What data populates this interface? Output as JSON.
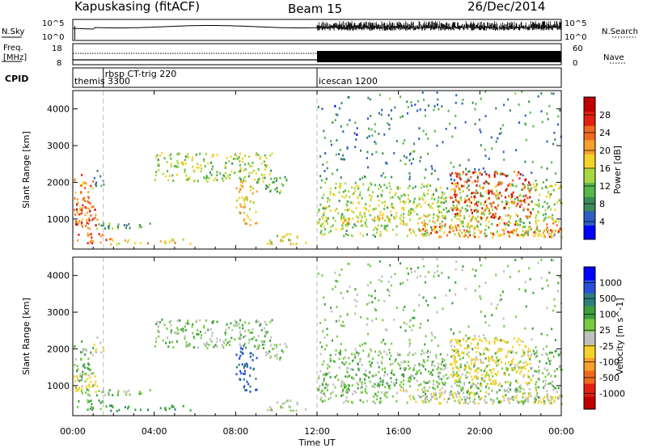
{
  "header": {
    "station": "Kapuskasing (fitACF)",
    "beam": "Beam 15",
    "date": "26/Dec/2014"
  },
  "noise_panel": {
    "left_label": "N.Sky",
    "left_ticks": [
      "10^5",
      "10^0"
    ],
    "right_label": "N.Search",
    "right_ticks": [
      "10^5",
      "10^0"
    ]
  },
  "freq_panel": {
    "left_label_1": "Freq.",
    "left_label_2": "[MHz]",
    "left_ticks": [
      "18",
      "8"
    ],
    "right_label": "Nave",
    "right_ticks": [
      "60",
      "0"
    ]
  },
  "cpid_panel": {
    "label": "CPID",
    "modes": [
      {
        "name": "themis 3300",
        "start_hour": 0
      },
      {
        "name": "rbsp CT-trig 220",
        "start_hour": 1.5
      },
      {
        "name": "icescan 1200",
        "start_hour": 12
      }
    ]
  },
  "x_axis": {
    "label": "Time UT",
    "ticks": [
      "00:00",
      "04:00",
      "08:00",
      "12:00",
      "16:00",
      "20:00",
      "00:00"
    ]
  },
  "power_panel": {
    "ylabel": "Slant Range [km]",
    "yticks": [
      "1000",
      "2000",
      "3000",
      "4000"
    ],
    "colorbar_label": "Power [dB]",
    "colorbar_ticks": [
      "4",
      "8",
      "12",
      "16",
      "20",
      "24",
      "28"
    ],
    "colors": [
      "#0000ff",
      "#2e5fc4",
      "#3a8a5a",
      "#55b84a",
      "#a8d840",
      "#f5d22a",
      "#f7a02a",
      "#f06a1e",
      "#e02010",
      "#c00000"
    ]
  },
  "velocity_panel": {
    "ylabel": "Slant Range [km]",
    "yticks": [
      "1000",
      "2000",
      "3000",
      "4000"
    ],
    "colorbar_label": "Velocity [m s^-1]",
    "colorbar_ticks": [
      "1000",
      "500",
      "100",
      "25",
      "-25",
      "-100",
      "-500",
      "-1000"
    ],
    "colors": [
      "#0000ff",
      "#2a4fd8",
      "#2e7f7f",
      "#3ca03c",
      "#77cc44",
      "#bfbfbf",
      "#f5d22a",
      "#f7a02a",
      "#f06a1e",
      "#e02010",
      "#c00000"
    ]
  },
  "chart_data": {
    "type": "heatmap",
    "x_unit": "hour UT",
    "x_range": [
      0,
      24
    ],
    "y_range_km": [
      180,
      4500
    ],
    "regions": [
      {
        "t0": 0.0,
        "t1": 1.0,
        "r0": 700,
        "r1": 2200,
        "power": 22,
        "velocity": 0
      },
      {
        "t0": 0.0,
        "t1": 1.2,
        "r0": 800,
        "r1": 1300,
        "power": 26,
        "velocity": -300
      },
      {
        "t0": 0.2,
        "t1": 1.8,
        "r0": 300,
        "r1": 600,
        "power": 24,
        "velocity": 50
      },
      {
        "t0": 1.8,
        "t1": 6.0,
        "r0": 300,
        "r1": 450,
        "power": 20,
        "velocity": 100
      },
      {
        "t0": 1.0,
        "t1": 1.5,
        "r0": 1900,
        "r1": 2400,
        "power": 8,
        "velocity": -100
      },
      {
        "t0": 1.0,
        "t1": 4.0,
        "r0": 700,
        "r1": 900,
        "power": 10,
        "velocity": 0
      },
      {
        "t0": 4.0,
        "t1": 9.8,
        "r0": 2000,
        "r1": 2800,
        "power": 14,
        "velocity": 0
      },
      {
        "t0": 8.0,
        "t1": 9.0,
        "r0": 800,
        "r1": 2100,
        "power": 18,
        "velocity": 500
      },
      {
        "t0": 9.0,
        "t1": 10.5,
        "r0": 1700,
        "r1": 2200,
        "power": 12,
        "velocity": 0
      },
      {
        "t0": 9.5,
        "t1": 11.5,
        "r0": 300,
        "r1": 600,
        "power": 16,
        "velocity": -50
      },
      {
        "t0": 12.0,
        "t1": 24.0,
        "r0": 500,
        "r1": 2000,
        "power": 14,
        "velocity": 0
      },
      {
        "t0": 13.0,
        "t1": 20.0,
        "r0": 900,
        "r1": 1100,
        "power": 18,
        "velocity": 0
      },
      {
        "t0": 18.5,
        "t1": 22.5,
        "r0": 1000,
        "r1": 2300,
        "power": 26,
        "velocity": -300
      },
      {
        "t0": 16.0,
        "t1": 24.0,
        "r0": 500,
        "r1": 900,
        "power": 22,
        "velocity": -100
      },
      {
        "t0": 12.0,
        "t1": 24.0,
        "r0": 2000,
        "r1": 4500,
        "power": 8,
        "velocity": 0
      }
    ]
  }
}
